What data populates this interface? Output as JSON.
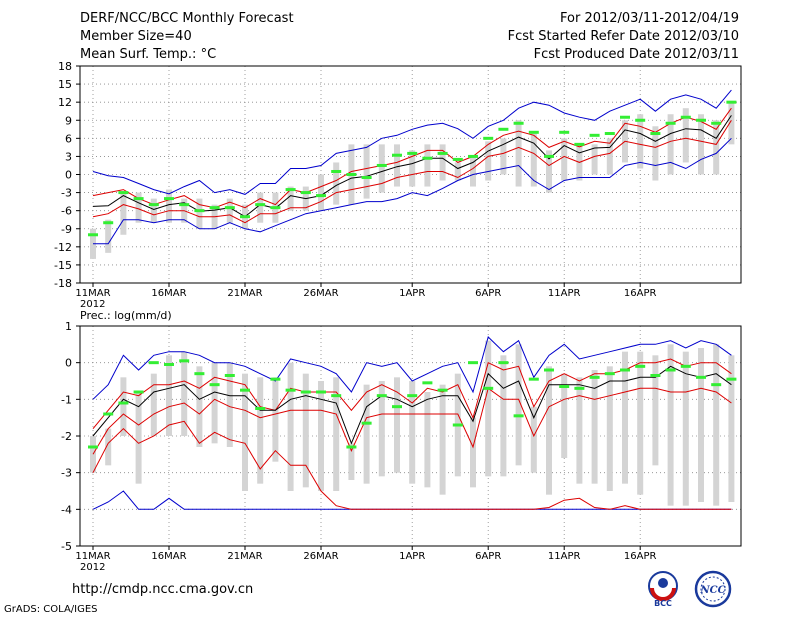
{
  "header": {
    "title": "DERF/NCC/BCC Monthly Forecast",
    "member": "Member Size=40",
    "variable": "Mean Surf. Temp.: °C",
    "period": "For 2012/03/11-2012/04/19",
    "started": "Fcst Started Refer Date 2012/03/10",
    "produced": "Fcst Produced Date 2012/03/11"
  },
  "footer": {
    "url": "http://cmdp.ncc.cma.gov.cn",
    "grads": "GrADS: COLA/IGES",
    "logo1_text": "BCC",
    "logo2_text": "NCC"
  },
  "colors": {
    "envelope": "#0000cc",
    "spread": "#dd0000",
    "mean": "#000000",
    "box": "#d4d4d4",
    "obs": "#33ee33"
  },
  "chart_data": [
    {
      "type": "line",
      "title": "Mean Surf. Temp.: °C",
      "ylim": [
        -18,
        18
      ],
      "yticks": [
        18,
        15,
        12,
        9,
        6,
        3,
        0,
        -3,
        -6,
        -9,
        -12,
        -15,
        -18
      ],
      "xticks": [
        {
          "day": 1,
          "label": "11MAR",
          "sub": "2012"
        },
        {
          "day": 6,
          "label": "16MAR"
        },
        {
          "day": 11,
          "label": "21MAR"
        },
        {
          "day": 16,
          "label": "26MAR"
        },
        {
          "day": 22,
          "label": "1APR"
        },
        {
          "day": 27,
          "label": "6APR"
        },
        {
          "day": 32,
          "label": "11APR"
        },
        {
          "day": 37,
          "label": "16APR"
        }
      ],
      "grid": true,
      "series": [
        {
          "name": "max",
          "values": [
            0.5,
            -0.2,
            -0.5,
            -1.5,
            -2.5,
            -3.2,
            -2,
            -1,
            -3,
            -2.5,
            -3.3,
            -1.5,
            -1.5,
            1,
            1,
            1.5,
            3.5,
            4,
            4.5,
            6,
            6.5,
            7.5,
            8.2,
            8.5,
            7.6,
            6,
            8,
            9,
            11,
            12,
            11.5,
            10.2,
            9.5,
            9,
            10.5,
            11.5,
            12.5,
            10.5,
            12.5,
            13.2,
            12.5,
            11,
            14
          ]
        },
        {
          "name": "upper",
          "values": [
            -3.5,
            -3,
            -2.5,
            -4,
            -5,
            -4.2,
            -3.5,
            -5,
            -5.5,
            -4.6,
            -5.5,
            -4,
            -5,
            -2.5,
            -3,
            -2,
            -1,
            0.5,
            1,
            1.5,
            2,
            3,
            4,
            4,
            2,
            3,
            5,
            6.5,
            7.2,
            6.5,
            4.5,
            5.5,
            4.6,
            5.5,
            5.2,
            8.5,
            8,
            7,
            8.5,
            9.5,
            8.8,
            7.5,
            11
          ]
        },
        {
          "name": "mean",
          "values": [
            -5.3,
            -5.2,
            -3.5,
            -4.7,
            -5.8,
            -5,
            -4.7,
            -6.1,
            -5.9,
            -5.5,
            -7,
            -5,
            -5.6,
            -3.5,
            -4,
            -3.5,
            -1.8,
            -0.6,
            -0.3,
            0.5,
            1.3,
            1.8,
            2.7,
            2.7,
            1,
            2,
            3.9,
            5,
            6.2,
            5.2,
            2.6,
            4.8,
            3.6,
            4.4,
            4.5,
            7.4,
            6.8,
            5.5,
            6.8,
            7.6,
            7.4,
            6,
            9.8
          ]
        },
        {
          "name": "lower",
          "values": [
            -7,
            -6.5,
            -5,
            -5.7,
            -6.7,
            -6,
            -6,
            -7,
            -7,
            -6.7,
            -8,
            -6.5,
            -6.5,
            -5.5,
            -5.5,
            -4.5,
            -3,
            -2.5,
            -2,
            -1.5,
            -0.5,
            0,
            0.5,
            0.5,
            -0.5,
            1,
            3,
            3.5,
            4.5,
            3.5,
            1.5,
            3,
            2,
            3,
            3.5,
            5.5,
            5,
            4.5,
            5.5,
            6,
            5.5,
            5,
            9
          ]
        },
        {
          "name": "min",
          "values": [
            -11.5,
            -11.5,
            -7.5,
            -7.5,
            -8,
            -7.5,
            -7.5,
            -9,
            -9,
            -8,
            -9,
            -9.5,
            -8.5,
            -7.5,
            -6.5,
            -6,
            -5.5,
            -5,
            -4.5,
            -4.5,
            -4,
            -3,
            -3.5,
            -2.3,
            -1,
            0,
            0.5,
            1,
            1.5,
            -1,
            -2.5,
            -1,
            -0.5,
            -0.5,
            -0.5,
            1.5,
            2,
            1.5,
            2,
            1,
            2.5,
            3.5,
            6
          ]
        },
        {
          "name": "box_top",
          "values": [
            -9,
            -7.5,
            -3,
            -3,
            -4,
            -2.5,
            -4,
            -4,
            -5,
            -4,
            -5,
            -3,
            -3,
            -2,
            -2,
            0,
            2,
            5,
            5,
            5,
            5,
            4,
            5,
            5,
            2,
            3,
            5.5,
            6,
            9,
            7,
            4,
            6,
            5,
            5,
            6,
            9,
            10,
            8,
            10,
            11,
            10,
            9,
            12
          ]
        },
        {
          "name": "box_bottom",
          "values": [
            -14,
            -13,
            -10,
            -8,
            -8,
            -8,
            -8,
            -9,
            -9,
            -8,
            -9,
            -8,
            -8,
            -6,
            -6,
            -6,
            -5,
            -5,
            -4,
            -3,
            -2,
            -2,
            -2,
            -1,
            -1,
            -2,
            -1,
            0,
            -2,
            -2,
            -3,
            -1,
            -1,
            0,
            0,
            2,
            1,
            -1,
            0,
            2,
            0,
            0,
            5
          ]
        },
        {
          "name": "observed",
          "values": [
            -10,
            -8,
            -3,
            -4,
            -5,
            -4,
            -5,
            -6,
            -5.5,
            -5.5,
            -7,
            -5,
            -5.5,
            -2.5,
            -3,
            -3.5,
            0.5,
            0,
            -0.5,
            1.5,
            3.2,
            3.5,
            2.7,
            3.5,
            2.5,
            3,
            6,
            7.5,
            8.5,
            7,
            3,
            7,
            5,
            6.5,
            6.8,
            9.5,
            9,
            6.8,
            8.5,
            9.5,
            9,
            8.5,
            12
          ]
        }
      ]
    },
    {
      "type": "line",
      "title": "Prec.: log(mm/d)",
      "ylim": [
        -5,
        1
      ],
      "yticks": [
        1,
        0,
        -1,
        -2,
        -3,
        -4,
        -5
      ],
      "xticks": [
        {
          "day": 1,
          "label": "11MAR",
          "sub": "2012"
        },
        {
          "day": 6,
          "label": "16MAR"
        },
        {
          "day": 11,
          "label": "21MAR"
        },
        {
          "day": 16,
          "label": "26MAR"
        },
        {
          "day": 22,
          "label": "1APR"
        },
        {
          "day": 27,
          "label": "6APR"
        },
        {
          "day": 32,
          "label": "11APR"
        },
        {
          "day": 37,
          "label": "16APR"
        }
      ],
      "grid": true,
      "series": [
        {
          "name": "max",
          "values": [
            -1,
            -0.6,
            0.2,
            -0.2,
            0.2,
            0.3,
            0.3,
            0.2,
            0,
            0,
            -0.1,
            -0.3,
            -0.5,
            0.1,
            0,
            -0.1,
            -0.3,
            -0.8,
            0,
            -0.1,
            0,
            -0.5,
            -0.3,
            -0.1,
            0,
            -0.8,
            0.7,
            0.3,
            0.6,
            -0.4,
            0.2,
            0.5,
            0.1,
            0.2,
            0.3,
            0.4,
            0.5,
            0.5,
            0.6,
            0.4,
            0.6,
            0.5,
            0.2
          ]
        },
        {
          "name": "upper",
          "values": [
            -1.8,
            -1.3,
            -0.8,
            -0.9,
            -0.6,
            -0.6,
            -0.5,
            -0.7,
            -0.4,
            -0.5,
            -0.6,
            -1.2,
            -1.3,
            -0.7,
            -0.8,
            -0.8,
            -0.8,
            -1.3,
            -0.8,
            -0.6,
            -0.8,
            -1.1,
            -0.7,
            -0.8,
            -0.6,
            -1.5,
            0,
            -0.2,
            -0.1,
            -1.2,
            -0.5,
            -0.3,
            -0.5,
            -0.3,
            -0.3,
            -0.2,
            0,
            0,
            0.1,
            -0.1,
            0,
            0,
            -0.3
          ]
        },
        {
          "name": "mean",
          "values": [
            -2,
            -1.5,
            -1,
            -1.2,
            -0.8,
            -0.7,
            -0.6,
            -1,
            -0.8,
            -0.9,
            -0.9,
            -1.3,
            -1.3,
            -1,
            -0.9,
            -1,
            -1.1,
            -2.2,
            -1.2,
            -0.9,
            -1,
            -1.2,
            -1,
            -0.9,
            -0.9,
            -1.6,
            -0.3,
            -0.7,
            -0.5,
            -1.5,
            -0.6,
            -0.6,
            -0.6,
            -0.7,
            -0.5,
            -0.5,
            -0.4,
            -0.4,
            -0.1,
            -0.3,
            -0.4,
            -0.3,
            -0.6
          ]
        },
        {
          "name": "lower",
          "values": [
            -2.5,
            -1.8,
            -1.4,
            -1.7,
            -1.4,
            -1.2,
            -1.1,
            -1.4,
            -1,
            -1.2,
            -1.3,
            -1.5,
            -1.4,
            -1.3,
            -1.3,
            -1.3,
            -1.4,
            -2.4,
            -1.5,
            -1.4,
            -1.4,
            -1.4,
            -1.4,
            -1.4,
            -1.4,
            -2.3,
            -0.7,
            -1,
            -1,
            -2,
            -1.2,
            -1,
            -0.9,
            -1,
            -0.9,
            -0.8,
            -0.7,
            -0.7,
            -0.8,
            -0.8,
            -0.7,
            -0.8,
            -1.1
          ]
        },
        {
          "name": "low",
          "values": [
            -3,
            -2.2,
            -1.8,
            -2.2,
            -2,
            -1.7,
            -1.6,
            -2.2,
            -1.9,
            -2.1,
            -2.2,
            -2.9,
            -2.4,
            -2.8,
            -2.8,
            -3.5,
            -3.9,
            -4,
            -4,
            -4,
            -4,
            -4,
            -4,
            -4,
            -4,
            -4,
            -4,
            -4,
            -4,
            -4,
            -3.95,
            -3.75,
            -3.7,
            -3.95,
            -4,
            -3.9,
            -4,
            -4,
            -4,
            -4,
            -4,
            -4,
            -4
          ]
        },
        {
          "name": "min",
          "values": [
            -4,
            -3.8,
            -3.5,
            -4,
            -4,
            -3.7,
            -4,
            -4,
            -4,
            -4,
            -4,
            -4,
            -4,
            -4,
            -4,
            -4,
            -4,
            -4,
            -4,
            -4,
            -4,
            -4,
            -4,
            -4,
            -4,
            -4,
            -4,
            -4,
            -4,
            -4,
            -4,
            -4,
            -4,
            -4,
            -4,
            -4,
            -4,
            -4,
            -4,
            -4,
            -4,
            -4,
            -4
          ]
        },
        {
          "name": "box_top",
          "values": [
            -2,
            -1.8,
            -0.4,
            -0.8,
            -0.3,
            0.2,
            0.3,
            -0.1,
            0,
            0,
            -0.3,
            -0.4,
            -0.4,
            0,
            -0.3,
            -0.5,
            -0.4,
            -2.2,
            -0.6,
            -0.5,
            -0.4,
            -0.5,
            -0.8,
            -0.6,
            -0.3,
            -1.5,
            0.6,
            0.2,
            0.5,
            -1.2,
            -0.1,
            -0.3,
            -0.4,
            -0.2,
            -0.1,
            0.3,
            0.3,
            0.2,
            0.5,
            0.3,
            0.4,
            0.5,
            0.2
          ]
        },
        {
          "name": "box_bottom",
          "values": [
            -3,
            -2.8,
            -2,
            -3.3,
            -2,
            -2,
            -2,
            -2.3,
            -2.2,
            -2.3,
            -3.5,
            -3.3,
            -2.7,
            -3.5,
            -3.4,
            -3.5,
            -3.5,
            -3.2,
            -3.3,
            -3.1,
            -3,
            -3.3,
            -3.4,
            -3.6,
            -3.1,
            -3.4,
            -3.1,
            -3.1,
            -2.8,
            -3,
            -3.6,
            -2.6,
            -3.3,
            -3.3,
            -3.5,
            -3.3,
            -3.6,
            -2.8,
            -3.9,
            -3.9,
            -3.8,
            -3.9,
            -3.8
          ]
        },
        {
          "name": "observed",
          "values": [
            -2.3,
            -1.4,
            -1.1,
            -0.8,
            0,
            -0.05,
            0.05,
            -0.3,
            -0.6,
            -0.35,
            -0.75,
            -1.25,
            -0.45,
            -0.75,
            -0.8,
            -0.8,
            -0.9,
            -2.3,
            -1.65,
            -0.9,
            -1.2,
            -0.9,
            -0.55,
            -0.75,
            -1.7,
            0,
            -0.7,
            0,
            -1.45,
            -0.45,
            -0.2,
            -0.65,
            -0.7,
            -0.4,
            -0.3,
            -0.2,
            -0.1,
            -0.35,
            -0.2,
            -0.1,
            -0.4,
            -0.6,
            -0.45
          ]
        }
      ]
    }
  ]
}
